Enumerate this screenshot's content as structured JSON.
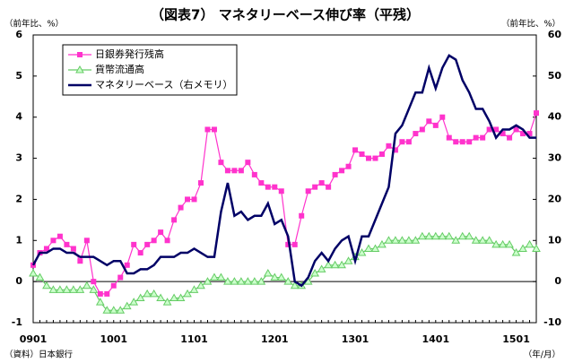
{
  "chart_data": {
    "type": "line",
    "title": "（図表7） マネタリーベース伸び率（平残）",
    "y_label": "（前年比、%）",
    "y2_label": "（前年比、%）",
    "x_label": "（年/月）",
    "source": "（資料）日本銀行",
    "categories": [
      "0901",
      null,
      null,
      null,
      null,
      null,
      null,
      null,
      null,
      null,
      null,
      null,
      "1001",
      null,
      null,
      null,
      null,
      null,
      null,
      null,
      null,
      null,
      null,
      null,
      "1101",
      null,
      null,
      null,
      null,
      null,
      null,
      null,
      null,
      null,
      null,
      null,
      "1201",
      null,
      null,
      null,
      null,
      null,
      null,
      null,
      null,
      null,
      null,
      null,
      "1301",
      null,
      null,
      null,
      null,
      null,
      null,
      null,
      null,
      null,
      null,
      null,
      "1401",
      null,
      null,
      null,
      null,
      null,
      null,
      null,
      null,
      null,
      null,
      null,
      "1501",
      null,
      null,
      null
    ],
    "ylim": [
      -1,
      6
    ],
    "yticks": [
      -1,
      0,
      1,
      2,
      3,
      4,
      5,
      6
    ],
    "y2lim": [
      -10,
      60
    ],
    "y2ticks": [
      -10,
      0,
      10,
      20,
      30,
      40,
      50,
      60
    ],
    "legend": "upper left",
    "series": [
      {
        "name": "日銀券発行残高",
        "color": "#ff33cc",
        "marker": "square",
        "values": [
          0.4,
          0.7,
          0.8,
          1.0,
          1.1,
          0.9,
          0.8,
          0.5,
          1.0,
          0.0,
          -0.3,
          -0.3,
          -0.1,
          0.1,
          0.4,
          0.9,
          0.7,
          0.9,
          1.0,
          1.2,
          1.0,
          1.5,
          1.8,
          2.0,
          2.0,
          2.4,
          3.7,
          3.7,
          2.9,
          2.7,
          2.7,
          2.7,
          2.9,
          2.6,
          2.4,
          2.3,
          2.3,
          2.2,
          0.9,
          0.9,
          1.6,
          2.2,
          2.3,
          2.4,
          2.3,
          2.6,
          2.7,
          2.8,
          3.2,
          3.1,
          3.0,
          3.0,
          3.1,
          3.3,
          3.2,
          3.4,
          3.4,
          3.6,
          3.7,
          3.9,
          3.8,
          4.0,
          3.5,
          3.4,
          3.4,
          3.4,
          3.5,
          3.5,
          3.7,
          3.7,
          3.6,
          3.5,
          3.7,
          3.6,
          3.6,
          4.1
        ]
      },
      {
        "name": "貨幣流通高",
        "color": "#66cc66",
        "marker": "triangle",
        "values": [
          0.2,
          0.1,
          -0.1,
          -0.2,
          -0.2,
          -0.2,
          -0.2,
          -0.2,
          -0.1,
          -0.2,
          -0.5,
          -0.7,
          -0.7,
          -0.7,
          -0.6,
          -0.5,
          -0.4,
          -0.3,
          -0.3,
          -0.4,
          -0.5,
          -0.4,
          -0.4,
          -0.3,
          -0.2,
          -0.1,
          0.0,
          0.1,
          0.1,
          0.0,
          0.0,
          0.0,
          0.0,
          0.0,
          0.0,
          0.2,
          0.1,
          0.1,
          0.0,
          -0.1,
          -0.1,
          0.0,
          0.2,
          0.3,
          0.4,
          0.4,
          0.4,
          0.5,
          0.6,
          0.7,
          0.8,
          0.8,
          0.9,
          1.0,
          1.0,
          1.0,
          1.0,
          1.0,
          1.1,
          1.1,
          1.1,
          1.1,
          1.1,
          1.0,
          1.1,
          1.1,
          1.0,
          1.0,
          1.0,
          0.9,
          0.9,
          0.9,
          0.7,
          0.8,
          0.9,
          0.8
        ]
      },
      {
        "name": "マネタリーベース（右メモリ）",
        "color": "#000066",
        "marker": "none",
        "axis": "y2",
        "values": [
          4,
          7,
          7,
          8,
          8,
          7,
          7,
          6,
          6,
          6,
          5,
          4,
          5,
          5,
          2,
          2,
          3,
          3,
          4,
          6,
          6,
          6,
          7,
          7,
          8,
          7,
          6,
          6,
          17,
          24,
          16,
          17,
          15,
          16,
          16,
          19,
          14,
          15,
          11,
          0,
          -1,
          1,
          5,
          7,
          5,
          8,
          10,
          11,
          5,
          11,
          11,
          15,
          19,
          23,
          36,
          38,
          42,
          46,
          46,
          52,
          47,
          52,
          55,
          54,
          49,
          46,
          42,
          42,
          39,
          35,
          37,
          37,
          38,
          37,
          35,
          35
        ]
      }
    ]
  }
}
